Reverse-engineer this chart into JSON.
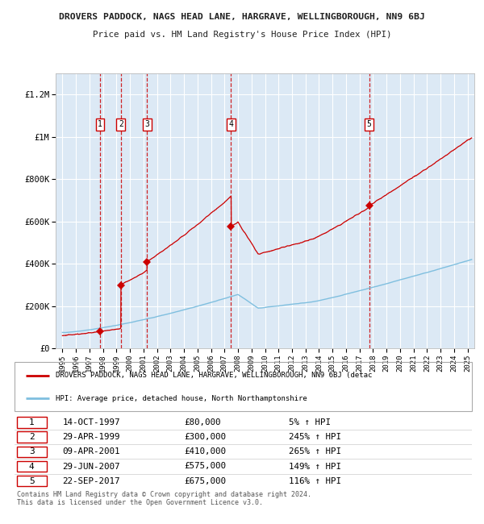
{
  "title": "DROVERS PADDOCK, NAGS HEAD LANE, HARGRAVE, WELLINGBOROUGH, NN9 6BJ",
  "subtitle": "Price paid vs. HM Land Registry's House Price Index (HPI)",
  "background_color": "#ffffff",
  "plot_bg_color": "#dce9f5",
  "grid_color": "#ffffff",
  "hpi_line_color": "#7fbfdf",
  "price_line_color": "#cc0000",
  "marker_color": "#cc0000",
  "dashed_line_color": "#cc0000",
  "transactions": [
    {
      "label": "1",
      "date": "14-OCT-1997",
      "year": 1997.78,
      "price": 80000,
      "pct": "5%"
    },
    {
      "label": "2",
      "date": "29-APR-1999",
      "year": 1999.33,
      "price": 300000,
      "pct": "245%"
    },
    {
      "label": "3",
      "date": "09-APR-2001",
      "year": 2001.27,
      "price": 410000,
      "pct": "265%"
    },
    {
      "label": "4",
      "date": "29-JUN-2007",
      "year": 2007.49,
      "price": 575000,
      "pct": "149%"
    },
    {
      "label": "5",
      "date": "22-SEP-2017",
      "year": 2017.72,
      "price": 675000,
      "pct": "116%"
    }
  ],
  "ylim": [
    0,
    1300000
  ],
  "xlim": [
    1994.5,
    2025.5
  ],
  "yticks": [
    0,
    200000,
    400000,
    600000,
    800000,
    1000000,
    1200000
  ],
  "ytick_labels": [
    "£0",
    "£200K",
    "£400K",
    "£600K",
    "£800K",
    "£1M",
    "£1.2M"
  ],
  "legend_line1": "DROVERS PADDOCK, NAGS HEAD LANE, HARGRAVE, WELLINGBOROUGH, NN9 6BJ (detac",
  "legend_line2": "HPI: Average price, detached house, North Northamptonshire",
  "table_rows": [
    [
      "1",
      "14-OCT-1997",
      "£80,000",
      "5% ↑ HPI"
    ],
    [
      "2",
      "29-APR-1999",
      "£300,000",
      "245% ↑ HPI"
    ],
    [
      "3",
      "09-APR-2001",
      "£410,000",
      "265% ↑ HPI"
    ],
    [
      "4",
      "29-JUN-2007",
      "£575,000",
      "149% ↑ HPI"
    ],
    [
      "5",
      "22-SEP-2017",
      "£675,000",
      "116% ↑ HPI"
    ]
  ],
  "footnote": "Contains HM Land Registry data © Crown copyright and database right 2024.\nThis data is licensed under the Open Government Licence v3.0."
}
